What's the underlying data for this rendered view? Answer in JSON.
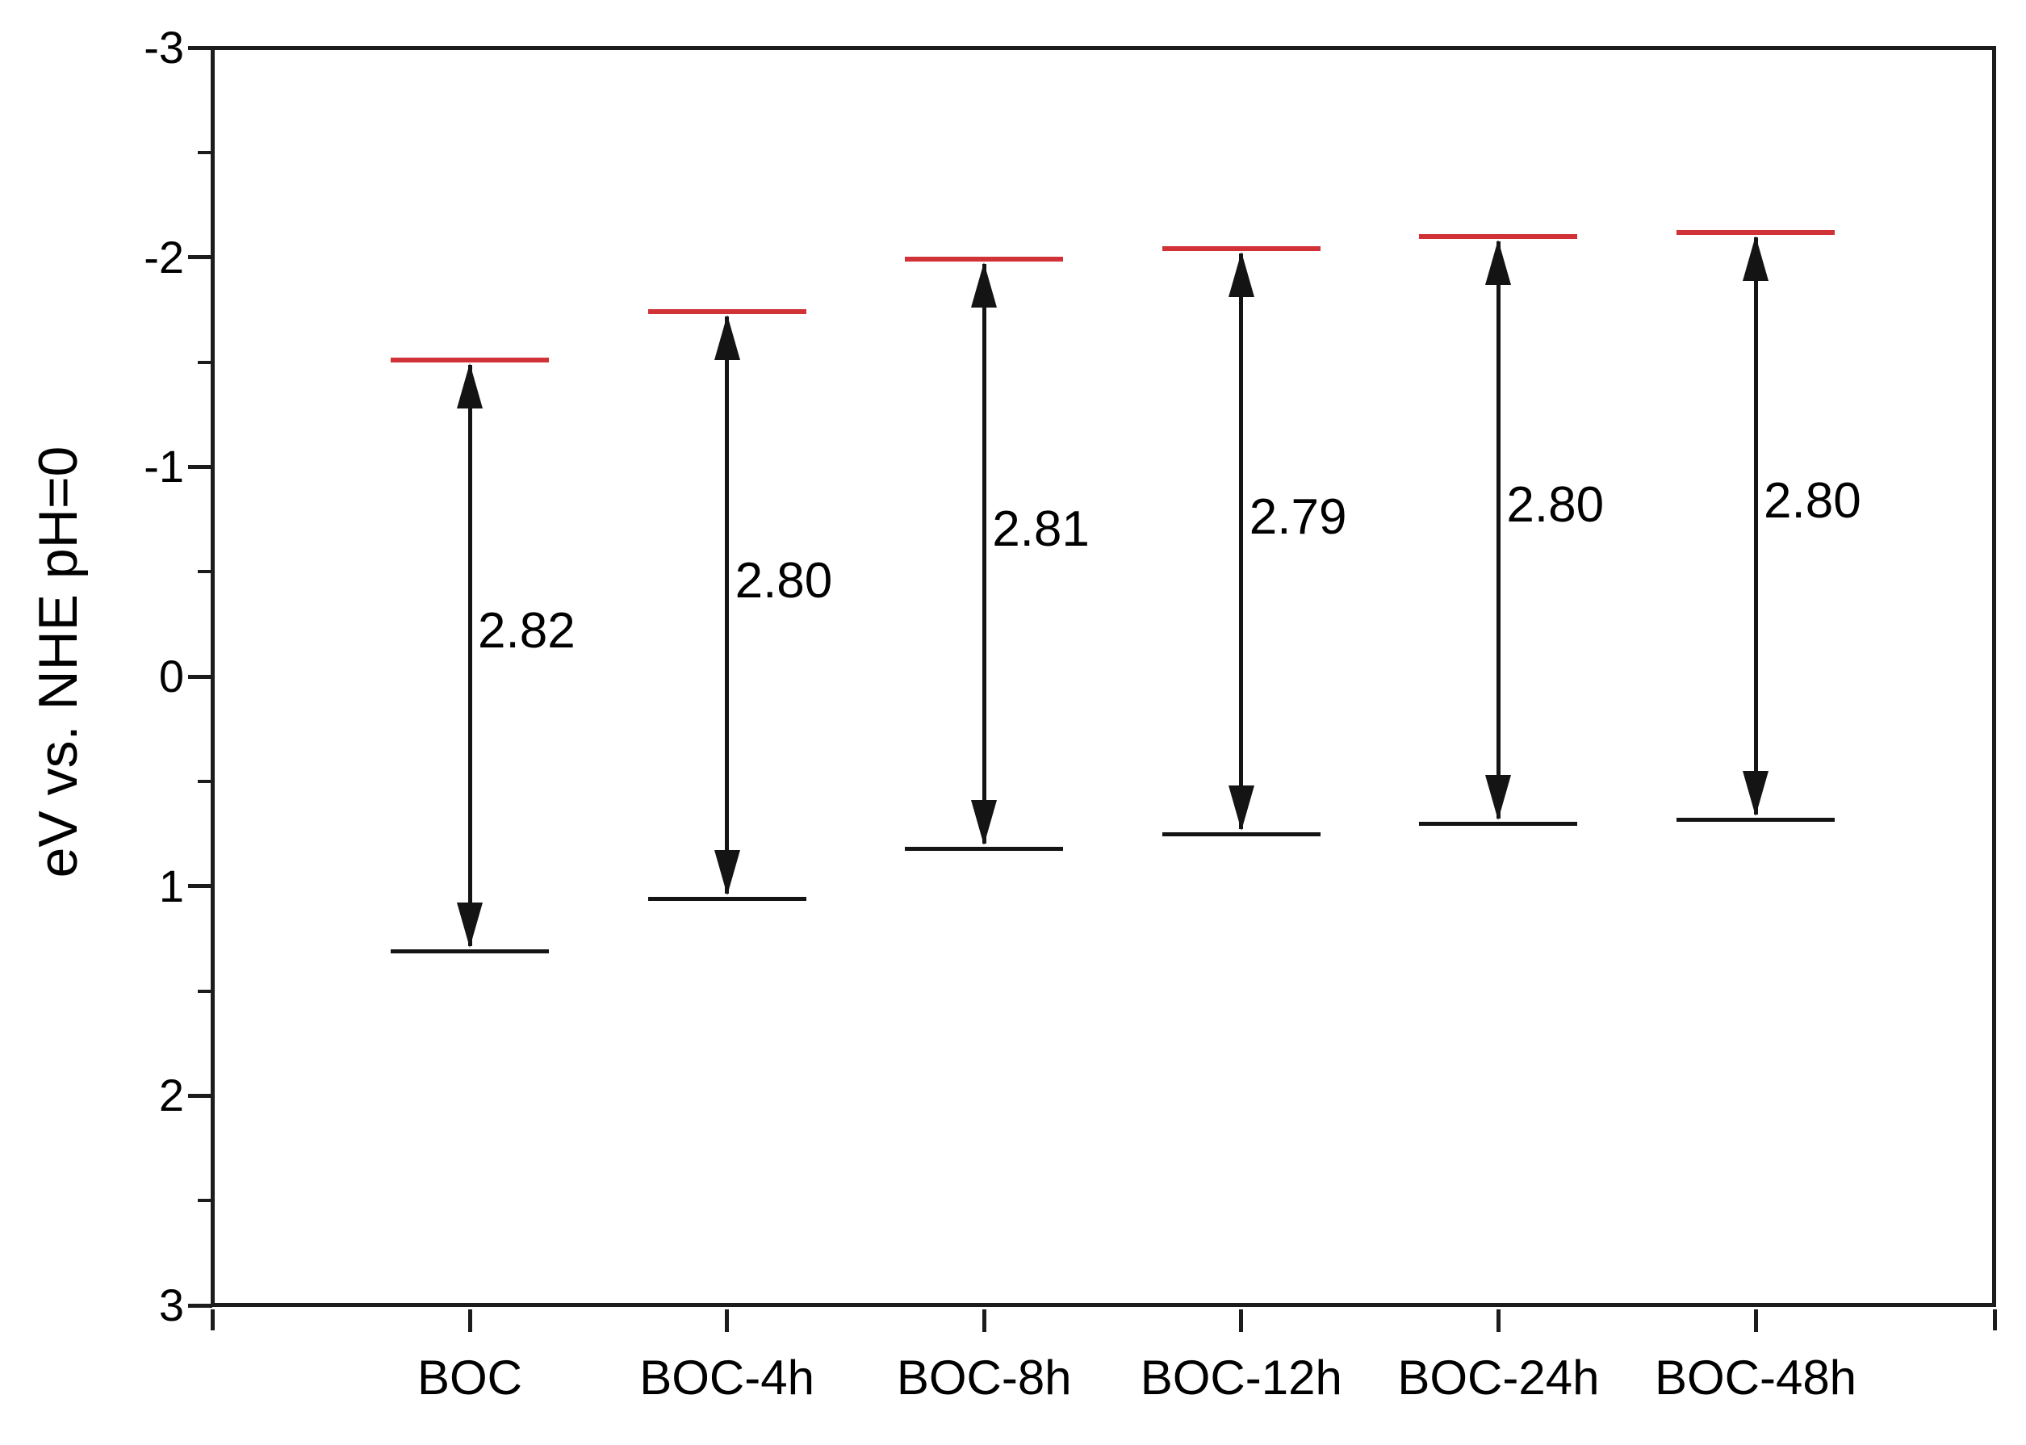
{
  "chart_data": {
    "type": "energy-level-diagram",
    "title": "",
    "ylabel": "eV vs. NHE pH=0",
    "xlabel": "",
    "grid": false,
    "legend": null,
    "y_axis": {
      "min": -3,
      "max": 3,
      "inverted_display": "negative values at top",
      "major_ticks": [
        -3,
        -2,
        -1,
        0,
        1,
        2,
        3
      ],
      "tick_labels": [
        "-3",
        "-2",
        "-1",
        "0",
        "1",
        "2",
        "3"
      ],
      "minor_ticks": [
        -2.5,
        -1.5,
        -0.5,
        0.5,
        1.5,
        2.5
      ]
    },
    "categories": [
      "BOC",
      "BOC-4h",
      "BOC-8h",
      "BOC-12h",
      "BOC-24h",
      "BOC-48h"
    ],
    "series": [
      {
        "name": "BOC",
        "cb_ev": -1.51,
        "vb_ev": 1.31,
        "band_gap_ev": 2.82,
        "gap_label": "2.82"
      },
      {
        "name": "BOC-4h",
        "cb_ev": -1.74,
        "vb_ev": 1.06,
        "band_gap_ev": 2.8,
        "gap_label": "2.80"
      },
      {
        "name": "BOC-8h",
        "cb_ev": -1.99,
        "vb_ev": 0.82,
        "band_gap_ev": 2.81,
        "gap_label": "2.81"
      },
      {
        "name": "BOC-12h",
        "cb_ev": -2.04,
        "vb_ev": 0.75,
        "band_gap_ev": 2.79,
        "gap_label": "2.79"
      },
      {
        "name": "BOC-24h",
        "cb_ev": -2.1,
        "vb_ev": 0.7,
        "band_gap_ev": 2.8,
        "gap_label": "2.80"
      },
      {
        "name": "BOC-48h",
        "cb_ev": -2.12,
        "vb_ev": 0.68,
        "band_gap_ev": 2.8,
        "gap_label": "2.80"
      }
    ],
    "colors": {
      "cb_line": "#d03238",
      "vb_line": "#141414",
      "arrow": "#141414",
      "axis": "#1c1c1c",
      "text": "#000000"
    }
  }
}
